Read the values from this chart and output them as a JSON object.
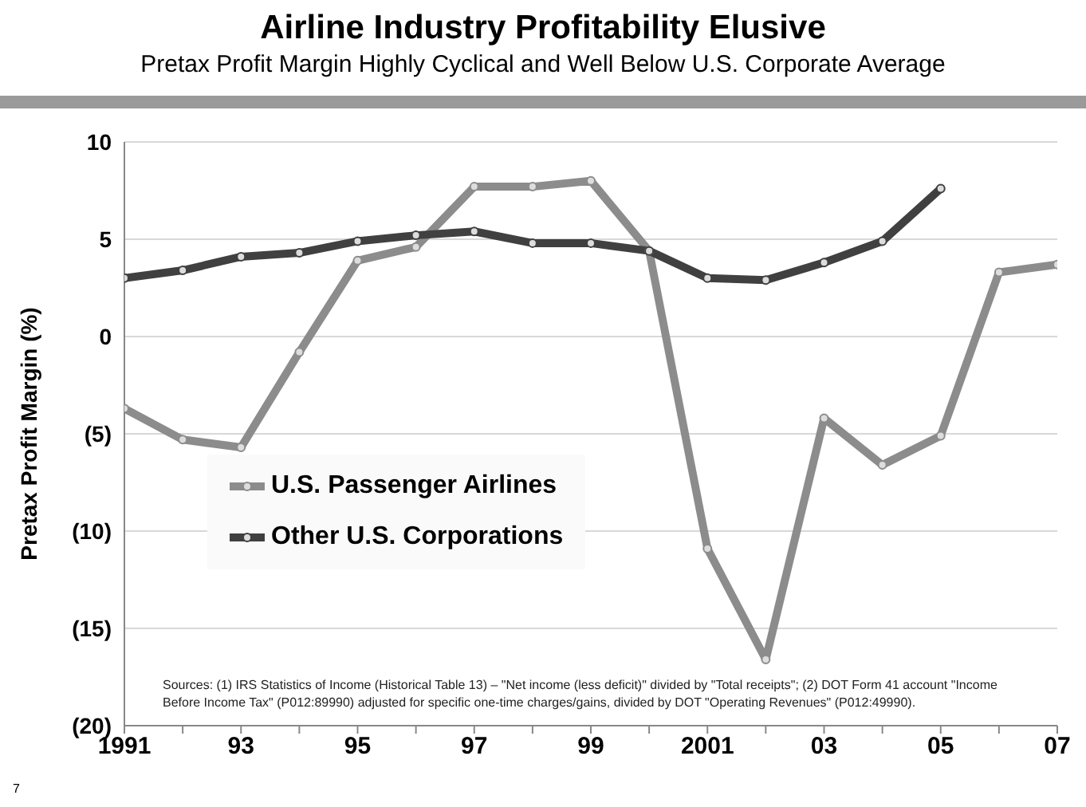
{
  "chart_data": {
    "type": "line",
    "title": "Airline Industry Profitability Elusive",
    "subtitle": "Pretax Profit Margin Highly Cyclical and Well Below U.S. Corporate Average",
    "ylabel": "Pretax Profit Margin (%)",
    "x": [
      1991,
      1992,
      1993,
      1994,
      1995,
      1996,
      1997,
      1998,
      1999,
      2000,
      2001,
      2002,
      2003,
      2004,
      2005,
      2006,
      2007
    ],
    "series": [
      {
        "name": "U.S. Passenger Airlines",
        "color": "#8c8c8c",
        "values": [
          -3.7,
          -5.3,
          -5.7,
          -0.8,
          3.9,
          4.6,
          7.7,
          7.7,
          8.0,
          4.4,
          -10.9,
          -16.6,
          -4.2,
          -6.6,
          -5.1,
          3.3,
          3.7
        ]
      },
      {
        "name": "Other U.S. Corporations",
        "color": "#404040",
        "values": [
          3.0,
          3.4,
          4.1,
          4.3,
          4.9,
          5.2,
          5.4,
          4.8,
          4.8,
          4.4,
          3.0,
          2.9,
          3.8,
          4.9,
          7.6,
          null,
          null
        ]
      }
    ],
    "xlim": [
      1991,
      2007
    ],
    "xticks": [
      1991,
      {
        "value": 1992,
        "label": null
      },
      {
        "value": 1993,
        "label": "93"
      },
      {
        "value": 1994,
        "label": null
      },
      {
        "value": 1995,
        "label": "95"
      },
      {
        "value": 1996,
        "label": null
      },
      {
        "value": 1997,
        "label": "97"
      },
      {
        "value": 1998,
        "label": null
      },
      {
        "value": 1999,
        "label": "99"
      },
      {
        "value": 2000,
        "label": null
      },
      2001,
      {
        "value": 2002,
        "label": null
      },
      {
        "value": 2003,
        "label": "03"
      },
      {
        "value": 2004,
        "label": null
      },
      {
        "value": 2005,
        "label": "05"
      },
      {
        "value": 2006,
        "label": null
      },
      {
        "value": 2007,
        "label": "07"
      }
    ],
    "ylim": [
      -20,
      10
    ],
    "yticks": [
      {
        "value": -20,
        "label": "(20)"
      },
      {
        "value": -15,
        "label": "(15)"
      },
      {
        "value": -10,
        "label": "(10)"
      },
      {
        "value": -5,
        "label": "(5)"
      },
      0,
      5,
      10
    ],
    "grid": "y",
    "legend": "left",
    "marker": "circle",
    "line_style": "solid",
    "annotations": [
      "Sources:  (1) IRS Statistics of Income (Historical Table 13) – \"Net income (less deficit)\" divided by \"Total receipts\"; (2) DOT Form 41 account \"Income Before Income Tax\" (P012:89990) adjusted for specific one-time charges/gains, divided by DOT \"Operating Revenues\" (P012:49990).",
      "7"
    ]
  }
}
